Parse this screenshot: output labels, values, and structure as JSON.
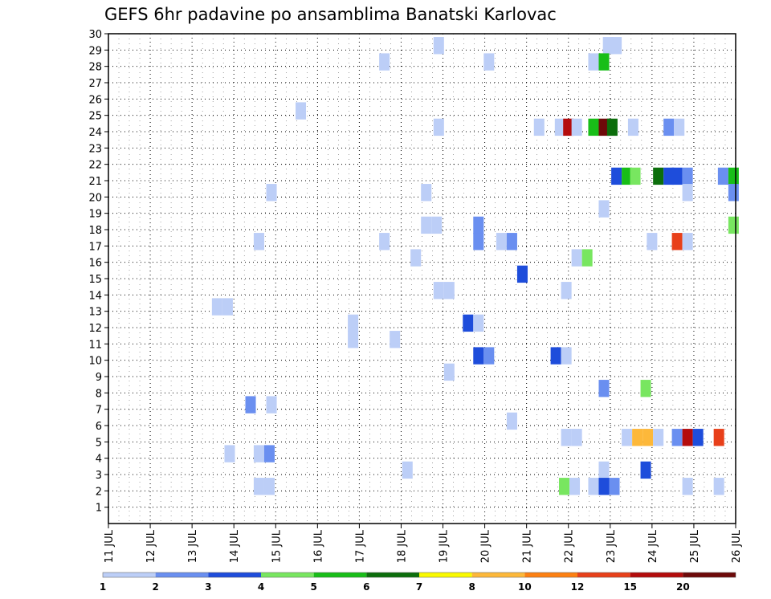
{
  "chart_data": {
    "type": "heatmap",
    "title": "GEFS 6hr padavine po ansamblima Banatski Karlovac",
    "ylim": [
      0,
      30
    ],
    "y_ticks": [
      1,
      2,
      3,
      4,
      5,
      6,
      7,
      8,
      9,
      10,
      11,
      12,
      13,
      14,
      15,
      16,
      17,
      18,
      19,
      20,
      21,
      22,
      23,
      24,
      25,
      26,
      27,
      28,
      29,
      30
    ],
    "x_ticks": [
      "11 JUL",
      "12 JUL",
      "13 JUL",
      "14 JUL",
      "15 JUL",
      "16 JUL",
      "17 JUL",
      "18 JUL",
      "19 JUL",
      "20 JUL",
      "21 JUL",
      "22 JUL",
      "23 JUL",
      "24 JUL",
      "25 JUL",
      "26 JUL"
    ],
    "x_range_days": [
      11,
      26
    ],
    "grid": true,
    "colorbar": {
      "colors": [
        "#bccef7",
        "#6a8ff0",
        "#1e4ddb",
        "#78e660",
        "#18be18",
        "#0c6e0c",
        "#fafa00",
        "#fdb83a",
        "#fd8012",
        "#e8401a",
        "#b40c0c",
        "#6e0a0a"
      ],
      "labels": [
        "1",
        "2",
        "3",
        "4",
        "5",
        "6",
        "7",
        "8",
        "10",
        "12",
        "15",
        "20"
      ]
    },
    "cells_note": "each cell: [member, day-of-July, color index]",
    "cells": [
      [
        29,
        18.9,
        0
      ],
      [
        29,
        22.95,
        0
      ],
      [
        29,
        23.15,
        0
      ],
      [
        28,
        17.6,
        0
      ],
      [
        28,
        20.1,
        0
      ],
      [
        28,
        22.6,
        0
      ],
      [
        28,
        22.85,
        4
      ],
      [
        25,
        15.6,
        0
      ],
      [
        24,
        18.9,
        0
      ],
      [
        24,
        21.3,
        0
      ],
      [
        24,
        21.8,
        0
      ],
      [
        24,
        22.0,
        10
      ],
      [
        24,
        22.2,
        0
      ],
      [
        24,
        22.6,
        4
      ],
      [
        24,
        22.85,
        11
      ],
      [
        24,
        23.05,
        5
      ],
      [
        24,
        23.55,
        0
      ],
      [
        24,
        24.4,
        1
      ],
      [
        24,
        24.65,
        0
      ],
      [
        21,
        23.15,
        2
      ],
      [
        21,
        23.4,
        4
      ],
      [
        21,
        23.6,
        3
      ],
      [
        21,
        24.15,
        5
      ],
      [
        21,
        24.4,
        2
      ],
      [
        21,
        24.6,
        2
      ],
      [
        21,
        24.85,
        1
      ],
      [
        21,
        25.7,
        1
      ],
      [
        21,
        25.95,
        4
      ],
      [
        20,
        14.9,
        0
      ],
      [
        20,
        18.6,
        0
      ],
      [
        20,
        24.85,
        0
      ],
      [
        20,
        25.95,
        1
      ],
      [
        19,
        22.85,
        0
      ],
      [
        18,
        18.6,
        0
      ],
      [
        18,
        18.85,
        0
      ],
      [
        18,
        19.85,
        1
      ],
      [
        18,
        25.95,
        3
      ],
      [
        17,
        14.6,
        0
      ],
      [
        17,
        17.6,
        0
      ],
      [
        17,
        19.85,
        1
      ],
      [
        17,
        20.4,
        0
      ],
      [
        17,
        20.65,
        1
      ],
      [
        17,
        24.0,
        0
      ],
      [
        17,
        24.6,
        9
      ],
      [
        17,
        24.85,
        0
      ],
      [
        16,
        18.35,
        0
      ],
      [
        16,
        22.2,
        0
      ],
      [
        16,
        22.45,
        3
      ],
      [
        15,
        20.9,
        2
      ],
      [
        14,
        18.9,
        0
      ],
      [
        14,
        19.15,
        0
      ],
      [
        14,
        21.95,
        0
      ],
      [
        13,
        13.6,
        0
      ],
      [
        13,
        13.85,
        0
      ],
      [
        12,
        16.85,
        0
      ],
      [
        12,
        19.6,
        2
      ],
      [
        12,
        19.85,
        0
      ],
      [
        11,
        16.85,
        0
      ],
      [
        11,
        17.85,
        0
      ],
      [
        10,
        19.85,
        2
      ],
      [
        10,
        20.1,
        1
      ],
      [
        10,
        21.7,
        2
      ],
      [
        10,
        21.95,
        0
      ],
      [
        9,
        19.15,
        0
      ],
      [
        8,
        22.85,
        1
      ],
      [
        8,
        23.85,
        3
      ],
      [
        7,
        14.4,
        1
      ],
      [
        7,
        14.9,
        0
      ],
      [
        6,
        20.65,
        0
      ],
      [
        5,
        21.95,
        0
      ],
      [
        5,
        22.2,
        0
      ],
      [
        5,
        23.4,
        0
      ],
      [
        5,
        23.65,
        7
      ],
      [
        5,
        23.9,
        7
      ],
      [
        5,
        24.15,
        0
      ],
      [
        5,
        24.6,
        1
      ],
      [
        5,
        24.85,
        10
      ],
      [
        5,
        25.1,
        2
      ],
      [
        5,
        25.6,
        9
      ],
      [
        4,
        13.9,
        0
      ],
      [
        4,
        14.6,
        0
      ],
      [
        4,
        14.85,
        1
      ],
      [
        3,
        18.15,
        0
      ],
      [
        3,
        22.85,
        0
      ],
      [
        3,
        23.85,
        2
      ],
      [
        2,
        14.6,
        0
      ],
      [
        2,
        14.85,
        0
      ],
      [
        2,
        21.9,
        3
      ],
      [
        2,
        22.15,
        0
      ],
      [
        2,
        22.6,
        0
      ],
      [
        2,
        22.85,
        2
      ],
      [
        2,
        23.1,
        1
      ],
      [
        2,
        24.85,
        0
      ],
      [
        2,
        25.6,
        0
      ]
    ]
  }
}
